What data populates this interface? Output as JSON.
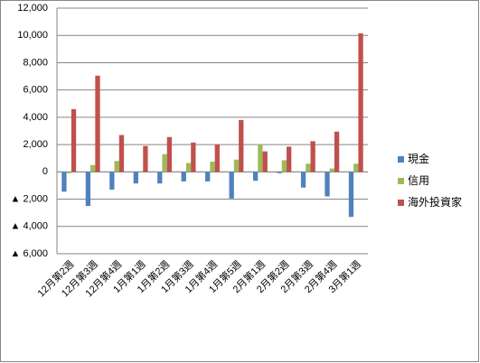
{
  "chart_data": {
    "type": "bar",
    "categories": [
      "12月第2週",
      "12月第3週",
      "12月第4週",
      "1月第1週",
      "1月第2週",
      "1月第3週",
      "1月第4週",
      "1月第5週",
      "2月第1週",
      "2月第2週",
      "2月第3週",
      "2月第4週",
      "3月第1週"
    ],
    "series": [
      {
        "name": "現金",
        "color": "#4f81bd",
        "values": [
          -1450,
          -2500,
          -1300,
          -850,
          -850,
          -700,
          -700,
          -1950,
          -650,
          -100,
          -1150,
          -1800,
          -3300
        ]
      },
      {
        "name": "信用",
        "color": "#9bbb59",
        "values": [
          -100,
          500,
          800,
          50,
          1300,
          650,
          750,
          900,
          2000,
          850,
          600,
          250,
          600
        ]
      },
      {
        "name": "海外投資家",
        "color": "#c0504d",
        "values": [
          4600,
          7050,
          2700,
          1900,
          2550,
          2150,
          2000,
          3800,
          1500,
          1850,
          2250,
          2950,
          10150
        ]
      }
    ],
    "ylim": [
      -6000,
      12000
    ],
    "yticks": [
      {
        "value": -6000,
        "label": "▲ 6,000"
      },
      {
        "value": -4000,
        "label": "▲ 4,000"
      },
      {
        "value": -2000,
        "label": "▲ 2,000"
      },
      0,
      {
        "value": 2000,
        "label": "2,000"
      },
      {
        "value": 4000,
        "label": "4,000"
      },
      {
        "value": 6000,
        "label": "6,000"
      },
      {
        "value": 8000,
        "label": "8,000"
      },
      {
        "value": 10000,
        "label": "10,000"
      },
      {
        "value": 12000,
        "label": "12,000"
      }
    ],
    "grid": true,
    "legend": "right"
  }
}
